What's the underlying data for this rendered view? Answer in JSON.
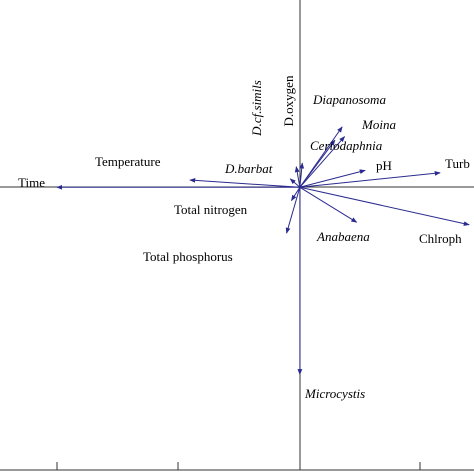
{
  "chart_data": {
    "type": "biplot",
    "xlim": [
      -2.48,
      1.44
    ],
    "ylim": [
      -2.34,
      1.55
    ],
    "color": "#2b2b8f",
    "vectors": [
      {
        "label": "Time",
        "x": -2.01,
        "y": 0
      },
      {
        "label": "Temperature",
        "x": -0.91,
        "y": 0.06
      },
      {
        "label": "D.barbat",
        "x": -0.08,
        "y": 0.07
      },
      {
        "label": "D.cf.simils",
        "x": -0.03,
        "y": 0.17
      },
      {
        "label": "D.oxygen",
        "x": 0.02,
        "y": 0.2
      },
      {
        "label": "Diapanosoma",
        "x": 0.35,
        "y": 0.5
      },
      {
        "label": "Moina",
        "x": 0.37,
        "y": 0.42
      },
      {
        "label": "Ceriodaphnia",
        "x": 0.29,
        "y": 0.39
      },
      {
        "label": "pH",
        "x": 0.54,
        "y": 0.14
      },
      {
        "label": "Turb",
        "x": 1.16,
        "y": 0.12
      },
      {
        "label": "Chlroph",
        "x": 1.4,
        "y": -0.31
      },
      {
        "label": "Anabaena",
        "x": 0.47,
        "y": -0.29
      },
      {
        "label": "Microcystis",
        "x": 0,
        "y": -1.55
      },
      {
        "label": "Total nitrogen",
        "x": -0.07,
        "y": -0.11
      },
      {
        "label": "Total phosphorus",
        "x": -0.11,
        "y": -0.38
      }
    ]
  }
}
